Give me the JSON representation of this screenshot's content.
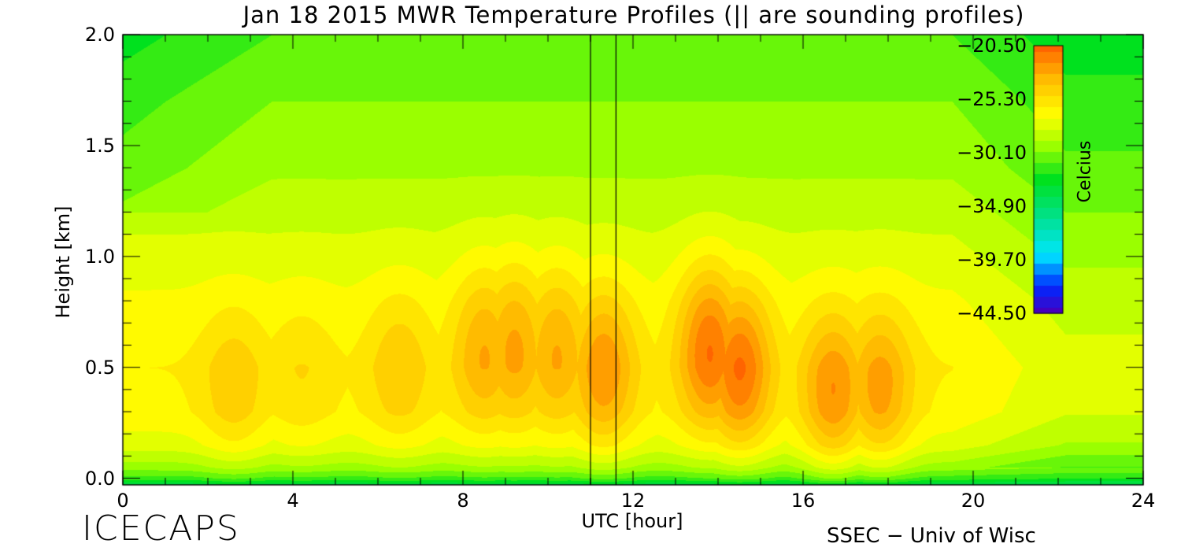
{
  "chart_data": {
    "type": "heatmap",
    "title": "Jan 18 2015 MWR Temperature Profiles (|| are sounding profiles)",
    "xlabel": "UTC [hour]",
    "ylabel": "Height [km]",
    "xlim": [
      0,
      24
    ],
    "ylim": [
      -0.03,
      2.0
    ],
    "x_ticks": [
      0,
      4,
      8,
      12,
      16,
      20,
      24
    ],
    "x_tick_labels": [
      "0",
      "4",
      "8",
      "12",
      "16",
      "20",
      "24"
    ],
    "y_ticks": [
      0.0,
      0.5,
      1.0,
      1.5,
      2.0
    ],
    "y_tick_labels": [
      "0.0",
      "0.5",
      "1.0",
      "1.5",
      "2.0"
    ],
    "colorbar": {
      "label": "Celcius",
      "range": [
        -44.5,
        -20.5
      ],
      "ticks": [
        -20.5,
        -25.3,
        -30.1,
        -34.9,
        -39.7,
        -44.5
      ],
      "tick_labels": [
        "−20.50",
        "−25.30",
        "−30.10",
        "−34.90",
        "−39.70",
        "−44.50"
      ],
      "placement": "inside-top-right"
    },
    "sounding_hours": [
      11.0,
      11.6
    ],
    "warm_cores": [
      {
        "hour": 2.6,
        "height": 0.4,
        "temp": -24.2
      },
      {
        "hour": 4.2,
        "height": 0.45,
        "temp": -25.0
      },
      {
        "hour": 6.5,
        "height": 0.5,
        "temp": -24.0
      },
      {
        "hour": 8.5,
        "height": 0.6,
        "temp": -23.0
      },
      {
        "hour": 9.2,
        "height": 0.62,
        "temp": -22.8
      },
      {
        "hour": 10.2,
        "height": 0.6,
        "temp": -23.0
      },
      {
        "hour": 11.3,
        "height": 0.5,
        "temp": -22.0
      },
      {
        "hour": 13.8,
        "height": 0.6,
        "temp": -21.0
      },
      {
        "hour": 14.5,
        "height": 0.5,
        "temp": -20.8
      },
      {
        "hour": 16.7,
        "height": 0.38,
        "temp": -22.0
      },
      {
        "hour": 17.8,
        "height": 0.4,
        "temp": -22.5
      }
    ],
    "background_profile": [
      {
        "height": -0.03,
        "temp": -34.0
      },
      {
        "height": 0.0,
        "temp": -31.5
      },
      {
        "height": 0.05,
        "temp": -29.5
      },
      {
        "height": 0.15,
        "temp": -27.5
      },
      {
        "height": 0.3,
        "temp": -26.3
      },
      {
        "height": 0.5,
        "temp": -26.0
      },
      {
        "height": 0.8,
        "temp": -26.8
      },
      {
        "height": 1.1,
        "temp": -28.0
      },
      {
        "height": 1.4,
        "temp": -29.2
      },
      {
        "height": 1.7,
        "temp": -30.0
      },
      {
        "height": 2.0,
        "temp": -31.0
      }
    ],
    "legend_placement": "top-right",
    "grid": false
  },
  "footer": {
    "left": "ICECAPS",
    "right": "SSEC − Univ of Wisc"
  }
}
